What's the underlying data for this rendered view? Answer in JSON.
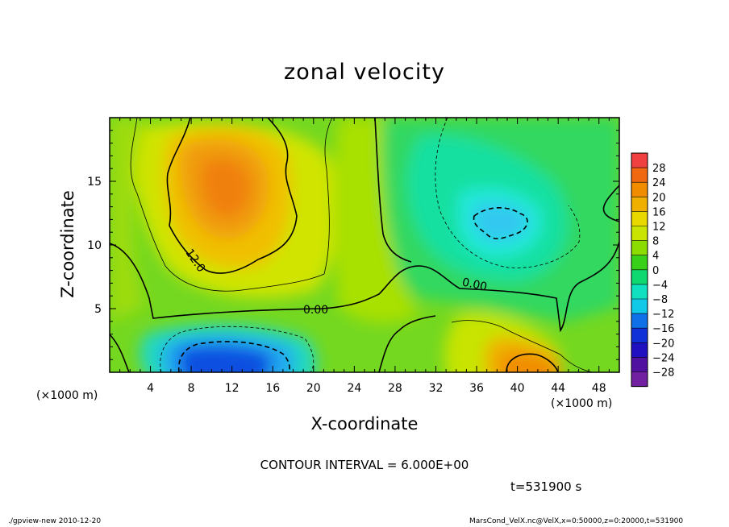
{
  "chart_data": {
    "type": "heatmap",
    "title": "zonal velocity",
    "xlabel": "X-coordinate",
    "ylabel": "Z-coordinate",
    "x_unit_label": "(×1000 m)",
    "z_unit_label": "(×1000 m)",
    "xlim": [
      0,
      50
    ],
    "ylim": [
      0,
      20
    ],
    "x_ticks": [
      4,
      8,
      12,
      16,
      20,
      24,
      28,
      32,
      36,
      40,
      44,
      48
    ],
    "y_ticks": [
      5,
      10,
      15
    ],
    "colorbar_levels": [
      28,
      24,
      20,
      16,
      12,
      8,
      4,
      0,
      -4,
      -8,
      -12,
      -16,
      -20,
      -24,
      -28
    ],
    "colorbar_colors": [
      "#f04040",
      "#f06810",
      "#f08c00",
      "#f0b000",
      "#e8d800",
      "#c8e400",
      "#8cdc00",
      "#38d018",
      "#10d870",
      "#10e0c0",
      "#10c8e8",
      "#1070e8",
      "#1030d8",
      "#2010c0",
      "#5010a0",
      "#7020a0"
    ],
    "contour_interval_text": "CONTOUR INTERVAL = 6.000E+00",
    "contour_labels": [
      "12.0",
      "0.00",
      "0.00"
    ],
    "regions": [
      {
        "name": "upper-left jet core",
        "x": 11,
        "z": 14,
        "value": 16
      },
      {
        "name": "upper-right negative core",
        "x": 38,
        "z": 12,
        "value": -10
      },
      {
        "name": "lower-left negative core",
        "x": 12,
        "z": 1,
        "value": -20
      },
      {
        "name": "lower-right positive core",
        "x": 41,
        "z": 1,
        "value": 16
      }
    ]
  },
  "time_label": "t=531900  s",
  "footer_left": "./gpview-new   2010-12-20",
  "footer_right": "MarsCond_VelX.nc@VelX,x=0:50000,z=0:20000,t=531900"
}
